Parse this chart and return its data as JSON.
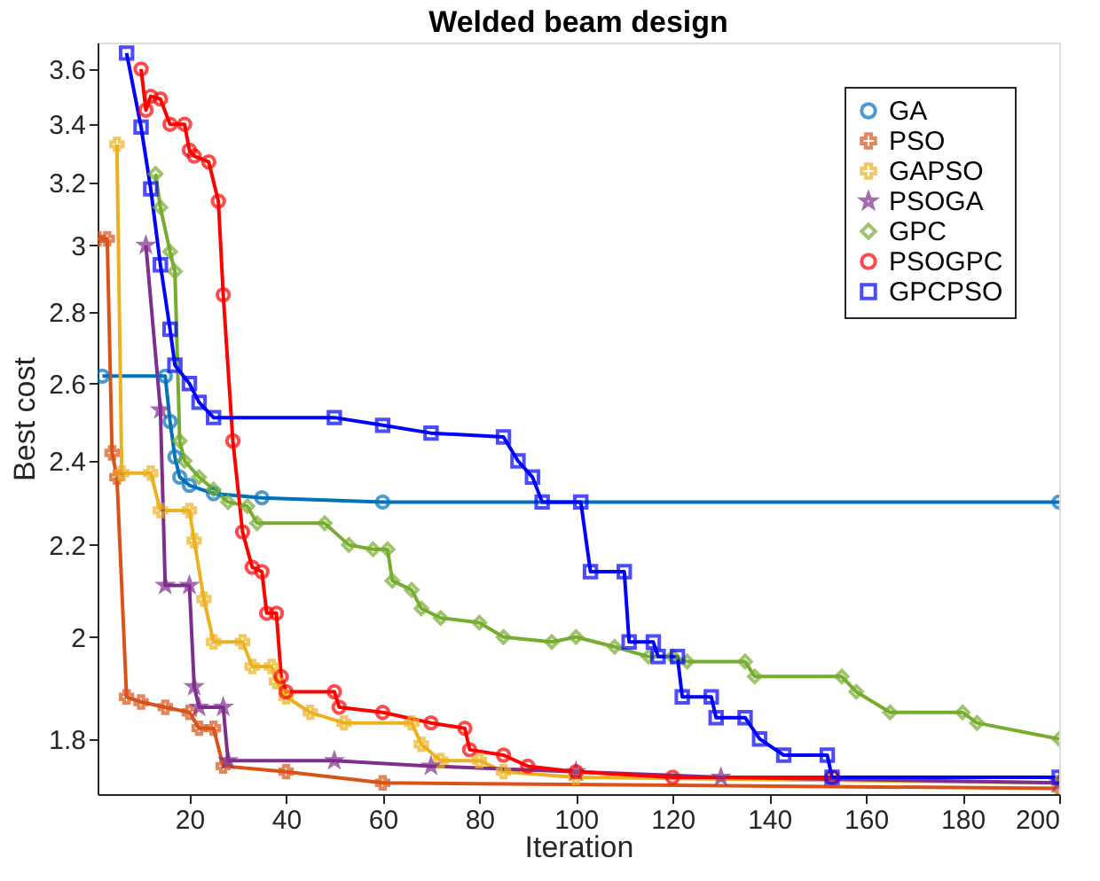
{
  "chart_data": {
    "type": "line",
    "title": "Welded beam design",
    "xlabel": "Iteration",
    "ylabel": "Best cost",
    "log": "y",
    "xlim": [
      1,
      200
    ],
    "ylim": [
      1.7,
      3.7
    ],
    "xticks": [
      20,
      40,
      60,
      80,
      100,
      120,
      140,
      160,
      180,
      200
    ],
    "yticks": [
      1.8,
      2,
      2.2,
      2.4,
      2.6,
      2.8,
      3,
      3.2,
      3.4,
      3.6
    ],
    "grid": false,
    "legend": "top right",
    "series": [
      {
        "name": "GA",
        "color": "#0072bd",
        "marker": "circle",
        "x": [
          2,
          15,
          16,
          17,
          18,
          20,
          25,
          35,
          60,
          200
        ],
        "values": [
          2.62,
          2.62,
          2.5,
          2.41,
          2.36,
          2.34,
          2.32,
          2.31,
          2.3,
          2.3
        ]
      },
      {
        "name": "PSO",
        "color": "#d95319",
        "marker": "cross",
        "x": [
          1,
          3,
          4,
          5,
          7,
          10,
          15,
          20,
          22,
          25,
          27,
          40,
          60,
          200
        ],
        "values": [
          3.02,
          3.02,
          2.42,
          2.36,
          1.88,
          1.87,
          1.86,
          1.85,
          1.82,
          1.82,
          1.75,
          1.74,
          1.72,
          1.71
        ]
      },
      {
        "name": "GAPSO",
        "color": "#edb120",
        "marker": "cross",
        "x": [
          5,
          6,
          12,
          14,
          20,
          21,
          23,
          25,
          31,
          33,
          37,
          38,
          40,
          45,
          52,
          66,
          68,
          72,
          80,
          85,
          100,
          200
        ],
        "values": [
          3.33,
          2.37,
          2.37,
          2.28,
          2.28,
          2.21,
          2.08,
          1.99,
          1.99,
          1.94,
          1.94,
          1.91,
          1.88,
          1.85,
          1.83,
          1.83,
          1.79,
          1.76,
          1.76,
          1.74,
          1.73,
          1.72
        ]
      },
      {
        "name": "PSOGA",
        "color": "#7e2f8e",
        "marker": "star",
        "x": [
          11,
          14,
          15,
          20,
          21,
          22,
          27,
          28,
          50,
          70,
          100,
          130,
          200
        ],
        "values": [
          3.0,
          2.53,
          2.11,
          2.11,
          1.9,
          1.86,
          1.86,
          1.76,
          1.76,
          1.75,
          1.74,
          1.73,
          1.72
        ]
      },
      {
        "name": "GPC",
        "color": "#77ac30",
        "marker": "diamond",
        "x": [
          13,
          14,
          16,
          17,
          18,
          19,
          22,
          25,
          28,
          32,
          34,
          48,
          53,
          58,
          61,
          62,
          66,
          68,
          72,
          80,
          85,
          95,
          100,
          108,
          115,
          120,
          123,
          135,
          137,
          155,
          158,
          165,
          180,
          183,
          200
        ],
        "values": [
          3.23,
          3.12,
          2.98,
          2.92,
          2.45,
          2.4,
          2.36,
          2.33,
          2.3,
          2.29,
          2.25,
          2.25,
          2.2,
          2.19,
          2.19,
          2.12,
          2.1,
          2.06,
          2.04,
          2.03,
          2.0,
          1.99,
          2.0,
          1.98,
          1.96,
          1.96,
          1.95,
          1.95,
          1.92,
          1.92,
          1.89,
          1.85,
          1.85,
          1.83,
          1.8
        ]
      },
      {
        "name": "PSOGPC",
        "color": "#ff0000",
        "marker": "circle",
        "x": [
          10,
          11,
          12,
          14,
          16,
          19,
          20,
          21,
          24,
          26,
          27,
          29,
          31,
          33,
          35,
          36,
          38,
          39,
          40,
          50,
          51,
          60,
          70,
          77,
          78,
          85,
          90,
          100,
          120,
          153
        ],
        "values": [
          3.6,
          3.45,
          3.5,
          3.49,
          3.4,
          3.4,
          3.31,
          3.29,
          3.27,
          3.14,
          2.85,
          2.45,
          2.23,
          2.15,
          2.14,
          2.05,
          2.05,
          1.92,
          1.89,
          1.89,
          1.86,
          1.85,
          1.83,
          1.82,
          1.78,
          1.77,
          1.75,
          1.74,
          1.73,
          1.73
        ]
      },
      {
        "name": "GPCPSO",
        "color": "#0000ff",
        "marker": "square",
        "x": [
          7,
          10,
          12,
          14,
          16,
          17,
          20,
          22,
          25,
          50,
          60,
          70,
          85,
          88,
          91,
          93,
          101,
          103,
          110,
          111,
          116,
          117,
          121,
          122,
          128,
          129,
          135,
          138,
          143,
          152,
          153,
          200
        ],
        "values": [
          3.66,
          3.39,
          3.18,
          2.94,
          2.75,
          2.65,
          2.6,
          2.55,
          2.51,
          2.51,
          2.49,
          2.47,
          2.46,
          2.4,
          2.36,
          2.3,
          2.3,
          2.14,
          2.14,
          1.99,
          1.99,
          1.96,
          1.96,
          1.88,
          1.88,
          1.84,
          1.84,
          1.8,
          1.77,
          1.77,
          1.73,
          1.73
        ]
      }
    ]
  }
}
